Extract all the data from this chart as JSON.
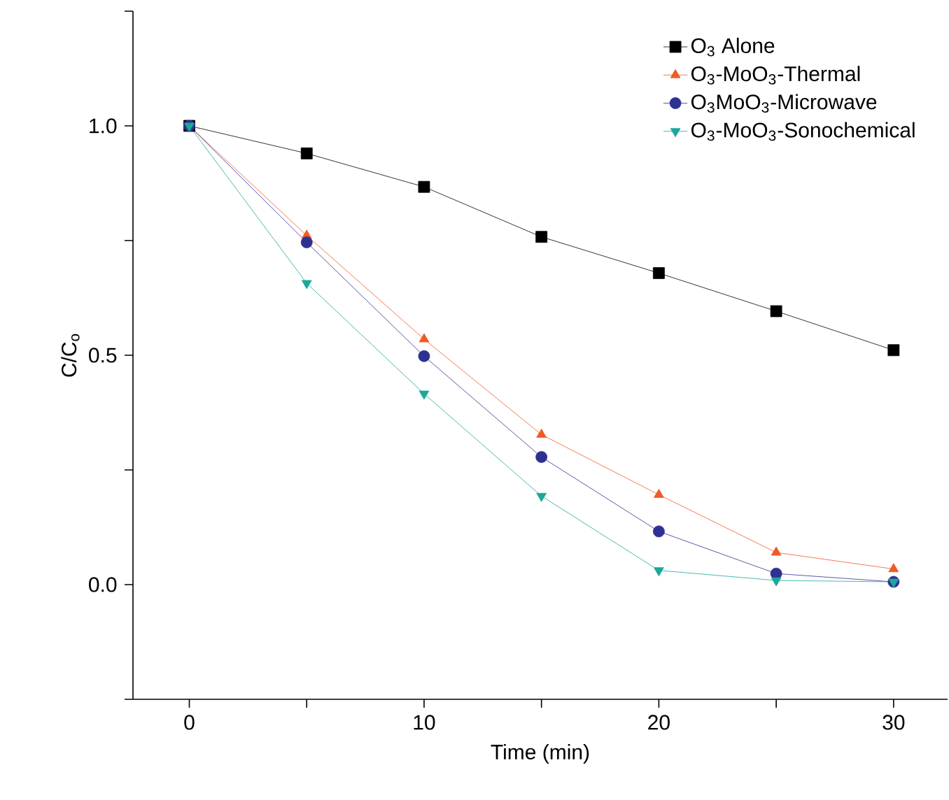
{
  "chart_data": {
    "type": "line",
    "xlabel": "Time (min)",
    "ylabel": "C/C$_{o}$",
    "x": [
      0,
      5,
      10,
      15,
      20,
      25,
      30
    ],
    "series": [
      {
        "name": "O$_{3}$ Alone",
        "color": "#000000",
        "marker": "square",
        "values": [
          1.0,
          0.94,
          0.867,
          0.758,
          0.679,
          0.596,
          0.511
        ]
      },
      {
        "name": "O$_{3}$-MoO$_{3}$-Thermal",
        "color": "#f05a28",
        "marker": "triangle",
        "values": [
          1.0,
          0.761,
          0.535,
          0.327,
          0.196,
          0.07,
          0.034
        ]
      },
      {
        "name": "O$_{3}$MoO$_{3}$-Microwave",
        "color": "#2e3192",
        "marker": "circle",
        "values": [
          1.0,
          0.746,
          0.498,
          0.278,
          0.116,
          0.024,
          0.006
        ]
      },
      {
        "name": "O$_{3}$-MoO$_{3}$-Sonochemical",
        "color": "#1aa89a",
        "marker": "triangle down",
        "values": [
          1.0,
          0.657,
          0.416,
          0.193,
          0.031,
          0.009,
          0.006
        ]
      }
    ],
    "xlim": [
      -2.4,
      32.3
    ],
    "ylim": [
      -0.25,
      1.25
    ],
    "xticks": [
      0,
      {
        "value": 5,
        "label": null
      },
      10,
      {
        "value": 15,
        "label": null
      },
      20,
      {
        "value": 25,
        "label": null
      },
      30
    ],
    "yticks": [
      {
        "value": -0.25,
        "label": null
      },
      {
        "value": 0,
        "label": "0.0"
      },
      {
        "value": 0.25,
        "label": null
      },
      {
        "value": 0.5,
        "label": "0.5"
      },
      {
        "value": 0.75,
        "label": null
      },
      {
        "value": 1.0,
        "label": "1.0"
      },
      {
        "value": 1.25,
        "label": null
      }
    ],
    "legend": "top right",
    "grid": false
  }
}
